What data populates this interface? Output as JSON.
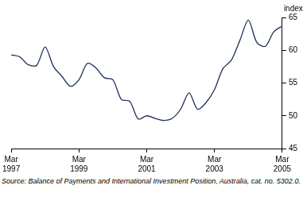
{
  "chart_data": {
    "type": "line",
    "y_label": "index",
    "source": "Source: Balance of Payments and International Investment Position, Australia, cat. no. 5302.0.",
    "categories": [
      "Mar 1997",
      null,
      null,
      null,
      null,
      null,
      null,
      null,
      "Mar 1999",
      null,
      null,
      null,
      null,
      null,
      null,
      null,
      "Mar 2001",
      null,
      null,
      null,
      null,
      null,
      null,
      null,
      "Mar 2003",
      null,
      null,
      null,
      null,
      null,
      null,
      null,
      "Mar 2005"
    ],
    "values": [
      59.3,
      59.0,
      57.8,
      57.7,
      60.5,
      57.5,
      56.0,
      54.5,
      55.5,
      58.0,
      57.3,
      55.8,
      55.5,
      52.5,
      52.2,
      49.5,
      50.0,
      49.6,
      49.3,
      49.6,
      51.0,
      53.5,
      51.0,
      52.0,
      54.0,
      57.2,
      58.5,
      61.5,
      64.6,
      61.2,
      60.6,
      62.8,
      63.7
    ],
    "color": "#1f2f5c",
    "ylim": [
      45,
      65
    ],
    "yticks": [
      45,
      50,
      55,
      60,
      65
    ],
    "grid": false
  }
}
